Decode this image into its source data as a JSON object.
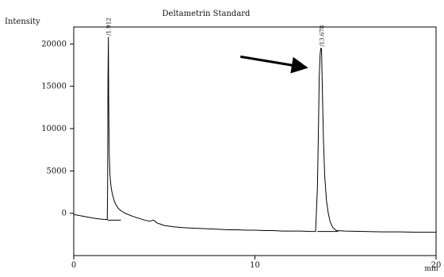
{
  "chart_data": {
    "type": "line",
    "title": "Deltametrin Standard",
    "xlabel": "min",
    "ylabel": "Intensity",
    "xlim": [
      0,
      20
    ],
    "ylim": [
      -5000,
      22000
    ],
    "grid": false,
    "x_ticks": [
      {
        "value": 0,
        "label": "0"
      },
      {
        "value": 10,
        "label": "10"
      },
      {
        "value": 20,
        "label": "20"
      }
    ],
    "y_ticks": [
      {
        "value": 0,
        "label": "0"
      },
      {
        "value": 5000,
        "label": "5000"
      },
      {
        "value": 10000,
        "label": "10000"
      },
      {
        "value": 15000,
        "label": "15000"
      },
      {
        "value": 20000,
        "label": "20000"
      }
    ],
    "series": [
      {
        "x": [
          0.0,
          0.5,
          1.0,
          1.5,
          1.85,
          1.87,
          1.89,
          1.912,
          1.93,
          1.96,
          2.0,
          2.05,
          2.1,
          2.2,
          2.3,
          2.45,
          2.6,
          2.8,
          3.0,
          3.3,
          3.6,
          3.9,
          4.2,
          4.4,
          4.6,
          4.8,
          5.0,
          5.5,
          6.0,
          6.5,
          7.0,
          7.5,
          8.0,
          8.5,
          9.0,
          9.5,
          10.0,
          10.5,
          11.0,
          11.5,
          12.0,
          12.5,
          13.0,
          13.35,
          13.45,
          13.5,
          13.55,
          13.6,
          13.64,
          13.678,
          13.72,
          13.78,
          13.85,
          13.95,
          14.05,
          14.15,
          14.3,
          14.5,
          15.0,
          16.0,
          17.0,
          18.0,
          19.0,
          20.0
        ],
        "y": [
          -150,
          -350,
          -550,
          -700,
          -750,
          3000,
          16000,
          20800,
          13000,
          7000,
          4500,
          3300,
          2600,
          1700,
          1100,
          600,
          300,
          50,
          -150,
          -400,
          -600,
          -800,
          -950,
          -800,
          -1150,
          -1300,
          -1450,
          -1600,
          -1700,
          -1750,
          -1800,
          -1850,
          -1900,
          -1950,
          -1950,
          -2000,
          -2000,
          -2050,
          -2050,
          -2100,
          -2100,
          -2100,
          -2150,
          -2150,
          3000,
          9000,
          16000,
          18800,
          19500,
          19400,
          15000,
          9000,
          4500,
          1500,
          0,
          -1000,
          -1700,
          -2050,
          -2100,
          -2150,
          -2200,
          -2200,
          -2250,
          -2250
        ]
      }
    ],
    "peak_labels": [
      {
        "x": 1.912,
        "y": 20800,
        "label": "/1.912"
      },
      {
        "x": 13.678,
        "y": 19500,
        "label": "/13.678"
      }
    ],
    "baseline_segments": [
      {
        "x": [
          1.87,
          2.6
        ],
        "y": [
          -820,
          -820
        ]
      },
      {
        "x": [
          13.45,
          14.6
        ],
        "y": [
          -2150,
          -2150
        ]
      }
    ],
    "annotations": [
      {
        "type": "arrow",
        "from": {
          "x": 9.2,
          "y": 18500
        },
        "to": {
          "x": 12.85,
          "y": 17200
        }
      }
    ]
  }
}
